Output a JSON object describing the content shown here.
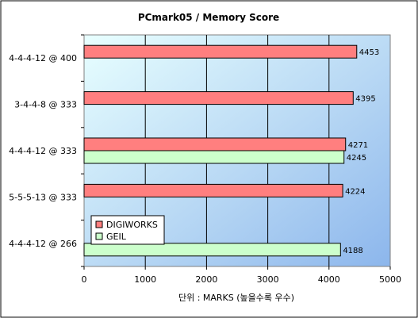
{
  "chart_data": {
    "type": "bar",
    "orientation": "horizontal",
    "title": "PCmark05 / Memory Score",
    "xlabel": "단위 : MARKS (높을수록 우수)",
    "ylabel": "",
    "xlim": [
      0,
      5000
    ],
    "xticks": [
      "0",
      "1000",
      "2000",
      "3000",
      "4000",
      "5000"
    ],
    "categories": [
      "4-4-4-12 @ 400",
      "3-4-4-8 @ 333",
      "4-4-4-12 @ 333",
      "5-5-5-13 @ 333",
      "4-4-4-12 @ 266"
    ],
    "series": [
      {
        "name": "DIGIWORKS",
        "color": "#ff7f7f",
        "values": [
          4453,
          4395,
          4271,
          4224,
          null
        ]
      },
      {
        "name": "GEIL",
        "color": "#ccffcc",
        "values": [
          null,
          null,
          4245,
          null,
          4188
        ]
      }
    ],
    "grid": "vertical",
    "legend_position": "bottom-left"
  }
}
